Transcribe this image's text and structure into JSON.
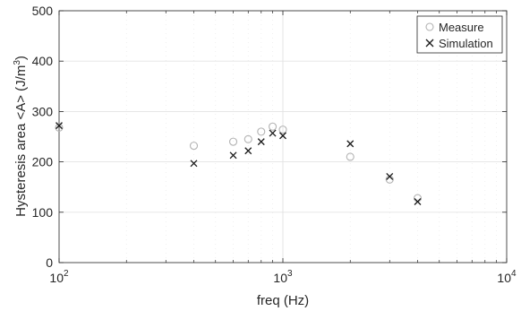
{
  "chart_data": {
    "type": "scatter",
    "title": "",
    "xlabel": "freq (Hz)",
    "ylabel_main": "Hysteresis area <A> (J/m",
    "ylabel_sup": "3",
    "ylabel_close": ")",
    "xscale": "log",
    "xlim": [
      100,
      10000
    ],
    "ylim": [
      0,
      500
    ],
    "xticks": [
      {
        "value": 100,
        "base": "10",
        "exp": "2"
      },
      {
        "value": 1000,
        "base": "10",
        "exp": "3"
      },
      {
        "value": 10000,
        "base": "10",
        "exp": "4"
      }
    ],
    "yticks": [
      {
        "value": 0,
        "label": "0"
      },
      {
        "value": 100,
        "label": "100"
      },
      {
        "value": 200,
        "label": "200"
      },
      {
        "value": 300,
        "label": "300"
      },
      {
        "value": 400,
        "label": "400"
      },
      {
        "value": 500,
        "label": "500"
      }
    ],
    "grid": true,
    "legend_position": "top-right",
    "series": [
      {
        "name": "Measure",
        "marker": "circle",
        "color": "#b3b3b3",
        "points": [
          {
            "x": 100,
            "y": 268
          },
          {
            "x": 400,
            "y": 232
          },
          {
            "x": 600,
            "y": 240
          },
          {
            "x": 700,
            "y": 245
          },
          {
            "x": 800,
            "y": 260
          },
          {
            "x": 900,
            "y": 270
          },
          {
            "x": 1000,
            "y": 264
          },
          {
            "x": 2000,
            "y": 210
          },
          {
            "x": 3000,
            "y": 165
          },
          {
            "x": 4000,
            "y": 128
          }
        ]
      },
      {
        "name": "Simulation",
        "marker": "x",
        "color": "#1a1a1a",
        "points": [
          {
            "x": 100,
            "y": 272
          },
          {
            "x": 400,
            "y": 197
          },
          {
            "x": 600,
            "y": 213
          },
          {
            "x": 700,
            "y": 222
          },
          {
            "x": 800,
            "y": 240
          },
          {
            "x": 900,
            "y": 257
          },
          {
            "x": 1000,
            "y": 252
          },
          {
            "x": 2000,
            "y": 236
          },
          {
            "x": 3000,
            "y": 171
          },
          {
            "x": 4000,
            "y": 121
          }
        ]
      }
    ]
  }
}
